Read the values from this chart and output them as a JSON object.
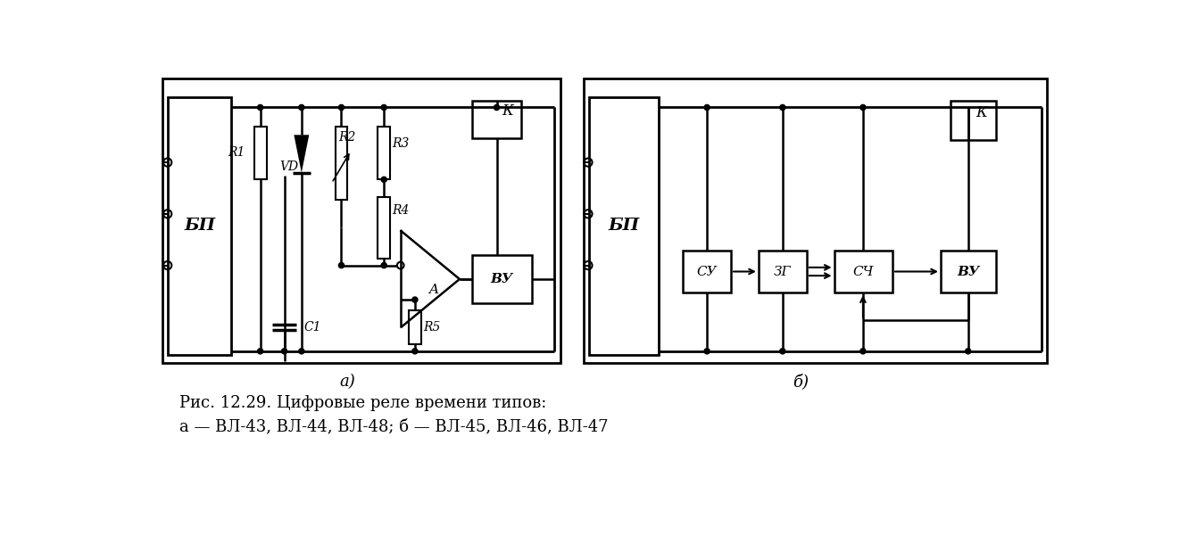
{
  "caption_line1": "Рис. 12.29. Цифровые реле времени типов:",
  "caption_line2": "а — ВЛ-43, ВЛ-44, ВЛ-48; б — ВЛ-45, ВЛ-46, ВЛ-47",
  "label_a": "а)",
  "label_b": "б)",
  "bg_color": "#ffffff",
  "line_color": "#000000"
}
